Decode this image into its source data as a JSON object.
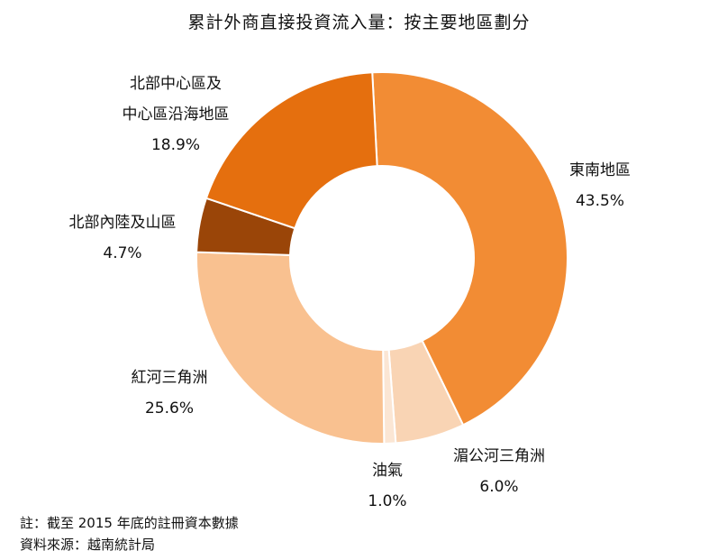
{
  "chart_data": {
    "type": "pie",
    "title": "累計外商直接投資流入量：按主要地區劃分",
    "donut": true,
    "categories": [
      "東南地區",
      "湄公河三角洲",
      "油氣",
      "紅河三角洲",
      "北部內陸及山區",
      "北部中心區及中心區沿海地區"
    ],
    "label_lines": [
      [
        "東南地區"
      ],
      [
        "湄公河三角洲"
      ],
      [
        "油氣"
      ],
      [
        "紅河三角洲"
      ],
      [
        "北部內陸及山區"
      ],
      [
        "北部中心區及",
        "中心區沿海地區"
      ]
    ],
    "values": [
      43.5,
      6.0,
      1.0,
      25.6,
      4.7,
      18.9
    ],
    "value_labels": [
      "43.5%",
      "6.0%",
      "1.0%",
      "25.6%",
      "4.7%",
      "18.9%"
    ],
    "colors": [
      "#F28C34",
      "#F9D4B4",
      "#FBE6D4",
      "#F9C190",
      "#9A4508",
      "#E56F0E"
    ],
    "start_angle_deg": -3,
    "direction": "clockwise",
    "unit": "%"
  },
  "notes": [
    "註：截至 2015 年底的註冊資本數據",
    "資料來源：越南統計局"
  ]
}
